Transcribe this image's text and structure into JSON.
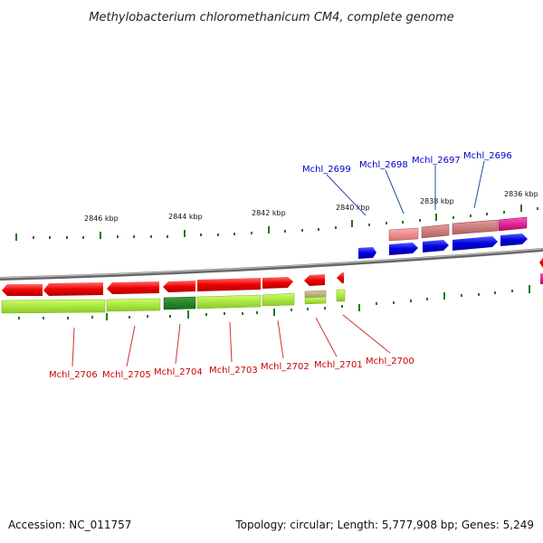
{
  "title": "Methylobacterium chloromethanicum CM4, complete genome",
  "accession": "Accession: NC_011757",
  "topology": "Topology: circular; Length: 5,777,908 bp; Genes: 5,249",
  "scale_labels": [
    "2846 kbp",
    "2844 kbp",
    "2842 kbp",
    "2840 kbp",
    "2838 kbp",
    "2836 kbp"
  ],
  "genes_top": [
    "Mchl_2699",
    "Mchl_2698",
    "Mchl_2697",
    "Mchl_2696"
  ],
  "genes_bottom": [
    "Mchl_2706",
    "Mchl_2705",
    "Mchl_2704",
    "Mchl_2703",
    "Mchl_2702",
    "Mchl_2701",
    "Mchl_2700"
  ],
  "colors": {
    "gene_forward": "#0000dd",
    "gene_reverse": "#ee0000",
    "cds_forward": "#f08c8c",
    "cds_reverse": "#aaee22",
    "cds_highlight_dark": "#2a8a2a",
    "cds_highlight_pink": "#e8108a",
    "backbone": "#888888",
    "tick": "#1a7a1a",
    "label_top": "#0000cc",
    "label_bottom": "#cc0000"
  }
}
